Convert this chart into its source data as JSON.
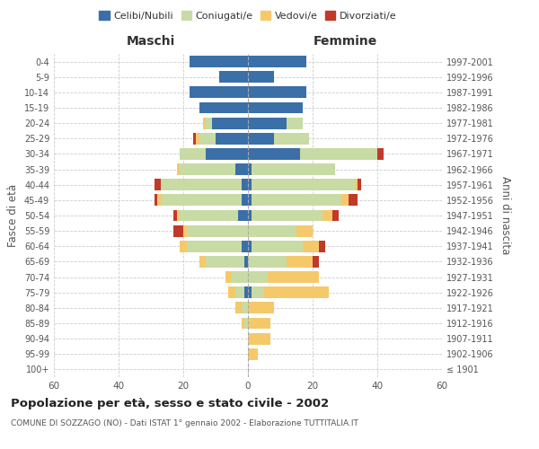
{
  "age_groups": [
    "100+",
    "95-99",
    "90-94",
    "85-89",
    "80-84",
    "75-79",
    "70-74",
    "65-69",
    "60-64",
    "55-59",
    "50-54",
    "45-49",
    "40-44",
    "35-39",
    "30-34",
    "25-29",
    "20-24",
    "15-19",
    "10-14",
    "5-9",
    "0-4"
  ],
  "birth_years": [
    "≤ 1901",
    "1902-1906",
    "1907-1911",
    "1912-1916",
    "1917-1921",
    "1922-1926",
    "1927-1931",
    "1932-1936",
    "1937-1941",
    "1942-1946",
    "1947-1951",
    "1952-1956",
    "1957-1961",
    "1962-1966",
    "1967-1971",
    "1972-1976",
    "1977-1981",
    "1982-1986",
    "1987-1991",
    "1992-1996",
    "1997-2001"
  ],
  "maschi": {
    "celibi": [
      0,
      0,
      0,
      0,
      0,
      1,
      0,
      1,
      2,
      0,
      3,
      2,
      2,
      4,
      13,
      10,
      11,
      15,
      18,
      9,
      18
    ],
    "coniugati": [
      0,
      0,
      0,
      1,
      2,
      3,
      5,
      12,
      17,
      19,
      18,
      25,
      25,
      17,
      8,
      5,
      2,
      0,
      0,
      0,
      0
    ],
    "vedovi": [
      0,
      0,
      0,
      1,
      2,
      2,
      2,
      2,
      2,
      1,
      1,
      1,
      0,
      1,
      0,
      1,
      1,
      0,
      0,
      0,
      0
    ],
    "divorziati": [
      0,
      0,
      0,
      0,
      0,
      0,
      0,
      0,
      0,
      3,
      1,
      1,
      2,
      0,
      0,
      1,
      0,
      0,
      0,
      0,
      0
    ]
  },
  "femmine": {
    "nubili": [
      0,
      0,
      0,
      0,
      0,
      1,
      0,
      0,
      1,
      0,
      1,
      1,
      1,
      1,
      16,
      8,
      12,
      17,
      18,
      8,
      18
    ],
    "coniugate": [
      0,
      0,
      0,
      0,
      0,
      4,
      6,
      12,
      16,
      15,
      22,
      28,
      32,
      26,
      24,
      11,
      5,
      0,
      0,
      0,
      0
    ],
    "vedove": [
      0,
      3,
      7,
      7,
      8,
      20,
      16,
      8,
      5,
      5,
      3,
      2,
      1,
      0,
      0,
      0,
      0,
      0,
      0,
      0,
      0
    ],
    "divorziate": [
      0,
      0,
      0,
      0,
      0,
      0,
      0,
      2,
      2,
      0,
      2,
      3,
      1,
      0,
      2,
      0,
      0,
      0,
      0,
      0,
      0
    ]
  },
  "colors": {
    "celibi": "#3a6fa8",
    "coniugati": "#c8dba4",
    "vedovi": "#f5c96a",
    "divorziati": "#c0392b"
  },
  "xlim": 60,
  "title": "Popolazione per età, sesso e stato civile - 2002",
  "subtitle": "COMUNE DI SOZZAGO (NO) - Dati ISTAT 1° gennaio 2002 - Elaborazione TUTTITALIA.IT",
  "ylabel_left": "Fasce di età",
  "ylabel_right": "Anni di nascita",
  "xlabel_left": "Maschi",
  "xlabel_right": "Femmine",
  "legend_labels": [
    "Celibi/Nubili",
    "Coniugati/e",
    "Vedovi/e",
    "Divorziati/e"
  ],
  "background_color": "#ffffff",
  "grid_color": "#cccccc"
}
